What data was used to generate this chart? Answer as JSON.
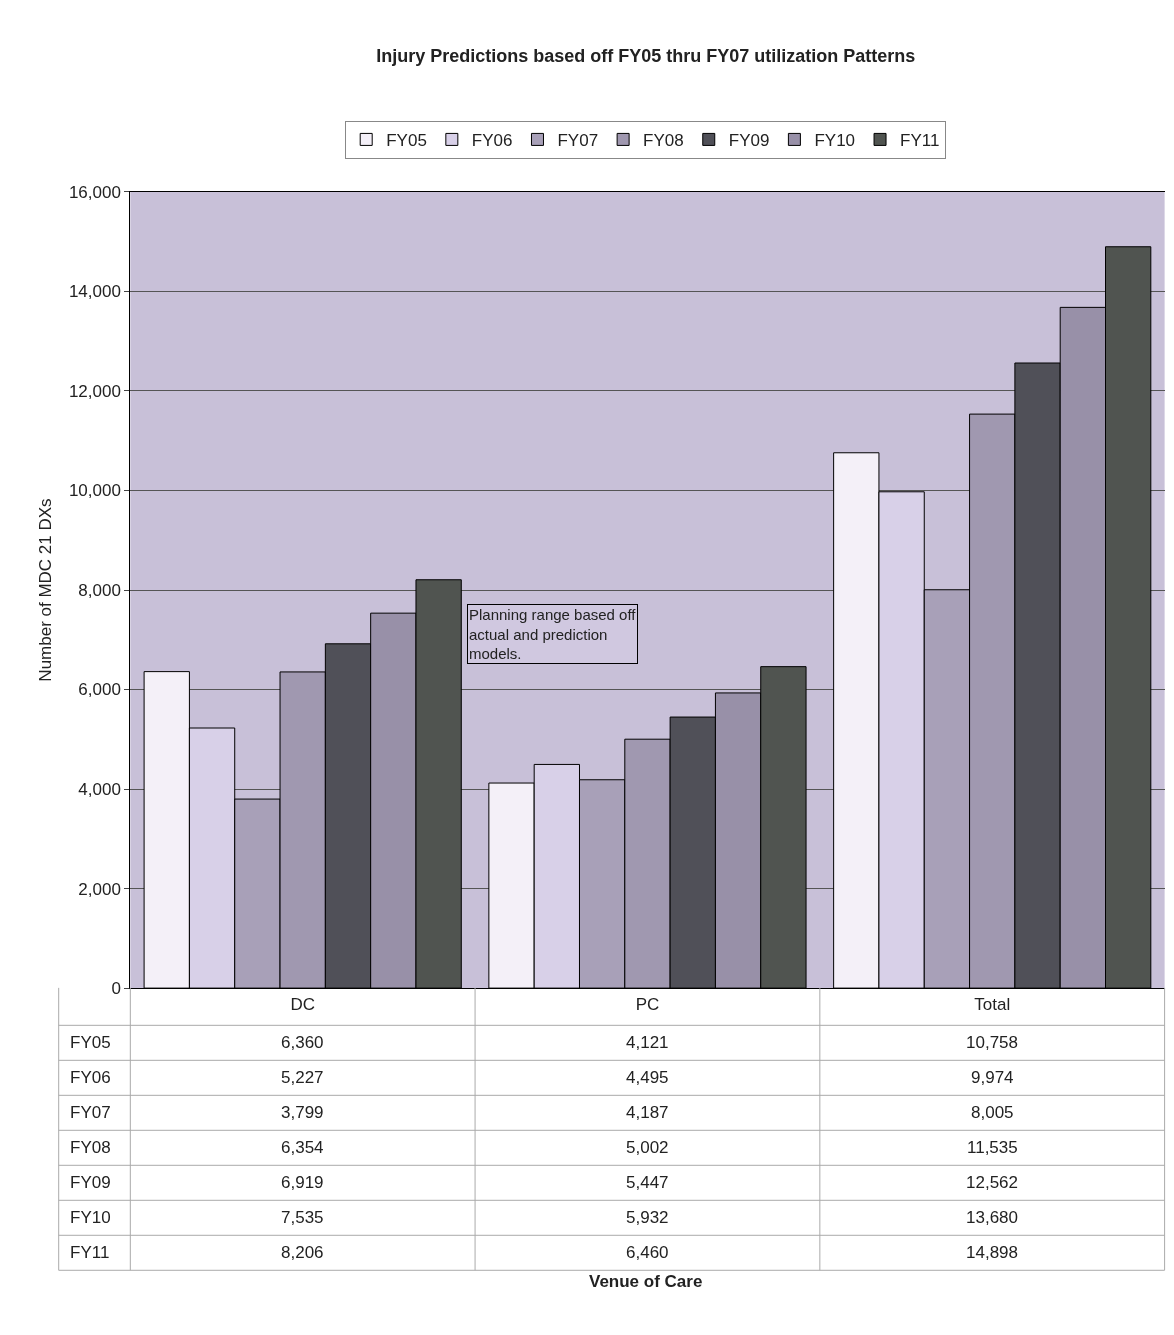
{
  "chart_data": {
    "type": "bar",
    "title": "Injury Predictions based off FY05 thru FY07 utilization Patterns",
    "ylabel": "Number of MDC 21 DXs",
    "categories": [
      "DC",
      "PC",
      "Total"
    ],
    "series": [
      {
        "name": "FY05",
        "color": "#f4f0f8",
        "values": [
          6360,
          4121,
          10758
        ],
        "value_labels": [
          "6,360",
          "4,121",
          "10,758"
        ]
      },
      {
        "name": "FY06",
        "color": "#d8d0e8",
        "values": [
          5227,
          4495,
          9974
        ],
        "value_labels": [
          "5,227",
          "4,495",
          "9,974"
        ]
      },
      {
        "name": "FY07",
        "color": "#a8a0b8",
        "values": [
          3799,
          4187,
          8005
        ],
        "value_labels": [
          "3,799",
          "4,187",
          "8,005"
        ]
      },
      {
        "name": "FY08",
        "color": "#a098b0",
        "values": [
          6354,
          5002,
          11535
        ],
        "value_labels": [
          "6,354",
          "5,002",
          "11,535"
        ]
      },
      {
        "name": "FY09",
        "color": "#505058",
        "values": [
          6919,
          5447,
          12562
        ],
        "value_labels": [
          "6,919",
          "5,447",
          "12,562"
        ]
      },
      {
        "name": "FY10",
        "color": "#9890a8",
        "values": [
          7535,
          5932,
          13680
        ],
        "value_labels": [
          "7,535",
          "5,932",
          "13,680"
        ]
      },
      {
        "name": "FY11",
        "color": "#505450",
        "values": [
          8206,
          6460,
          14898
        ],
        "value_labels": [
          "8,206",
          "6,460",
          "14,898"
        ]
      }
    ],
    "ylim": [
      0,
      16000
    ],
    "yticks": [
      {
        "value": 0,
        "label": "0"
      },
      {
        "value": 2000,
        "label": "2,000"
      },
      {
        "value": 4000,
        "label": "4,000"
      },
      {
        "value": 6000,
        "label": "6,000"
      },
      {
        "value": 8000,
        "label": "8,000"
      },
      {
        "value": 10000,
        "label": "10,000"
      },
      {
        "value": 12000,
        "label": "12,000"
      },
      {
        "value": 14000,
        "label": "14,000"
      },
      {
        "value": 16000,
        "label": "16,000"
      }
    ],
    "grid": "y",
    "legend": "top",
    "annotations": [
      "Planning range based off actual and prediction models.",
      "Venue of Care"
    ]
  }
}
